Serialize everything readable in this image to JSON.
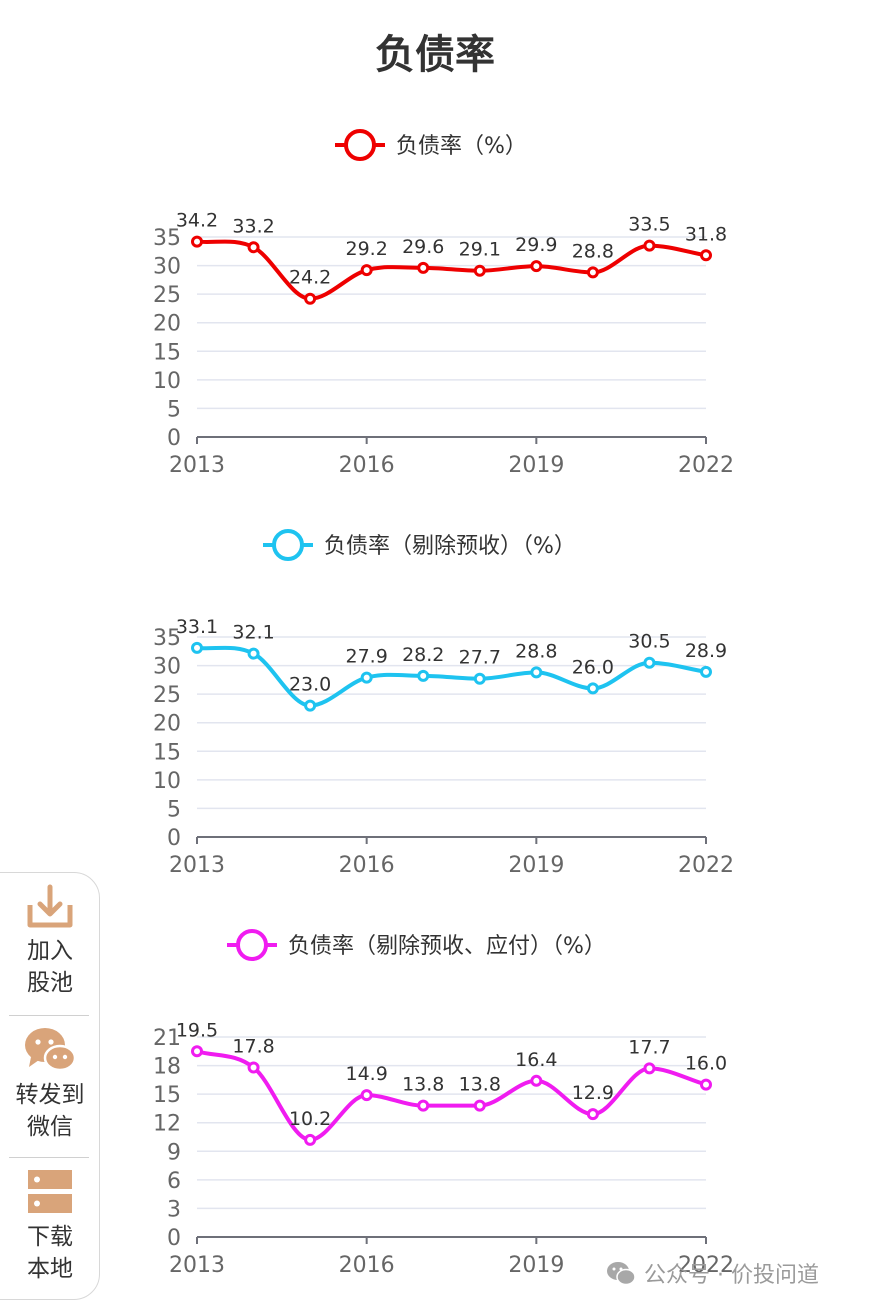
{
  "page": {
    "title": "负债率"
  },
  "chart_data": [
    {
      "type": "line",
      "legend": "负债率（%）",
      "color": "#ee0000",
      "x": [
        2013,
        2014,
        2015,
        2016,
        2017,
        2018,
        2019,
        2020,
        2021,
        2022
      ],
      "x_tick_labels": [
        "2013",
        "2016",
        "2019",
        "2022"
      ],
      "values": [
        34.2,
        33.2,
        24.2,
        29.2,
        29.6,
        29.1,
        29.9,
        28.8,
        33.5,
        31.8
      ],
      "data_labels": [
        "34.2",
        "33.2",
        "24.2",
        "29.2",
        "29.6",
        "29.1",
        "29.9",
        "28.8",
        "33.5",
        "31.8"
      ],
      "ylim": [
        0,
        35
      ],
      "y_ticks": [
        0,
        5,
        10,
        15,
        20,
        25,
        30,
        35
      ],
      "grid": true,
      "legend_position": "top-center"
    },
    {
      "type": "line",
      "legend": "负债率（剔除预收）（%）",
      "color": "#1ec3f0",
      "x": [
        2013,
        2014,
        2015,
        2016,
        2017,
        2018,
        2019,
        2020,
        2021,
        2022
      ],
      "x_tick_labels": [
        "2013",
        "2016",
        "2019",
        "2022"
      ],
      "values": [
        33.1,
        32.1,
        23.0,
        27.9,
        28.2,
        27.7,
        28.8,
        26.0,
        30.5,
        28.9
      ],
      "data_labels": [
        "33.1",
        "32.1",
        "23.0",
        "27.9",
        "28.2",
        "27.7",
        "28.8",
        "26.0",
        "30.5",
        "28.9"
      ],
      "ylim": [
        0,
        35
      ],
      "y_ticks": [
        0,
        5,
        10,
        15,
        20,
        25,
        30,
        35
      ],
      "grid": true,
      "legend_position": "top-center"
    },
    {
      "type": "line",
      "legend": "负债率（剔除预收、应付）（%）",
      "color": "#f01cf0",
      "x": [
        2013,
        2014,
        2015,
        2016,
        2017,
        2018,
        2019,
        2020,
        2021,
        2022
      ],
      "x_tick_labels": [
        "2013",
        "2016",
        "2019",
        "2022"
      ],
      "values": [
        19.5,
        17.8,
        10.2,
        14.9,
        13.8,
        13.8,
        16.4,
        12.9,
        17.7,
        16.0
      ],
      "data_labels": [
        "19.5",
        "17.8",
        "10.2",
        "14.9",
        "13.8",
        "13.8",
        "16.4",
        "12.9",
        "17.7",
        "16.0"
      ],
      "ylim": [
        0,
        21
      ],
      "y_ticks": [
        0,
        3,
        6,
        9,
        12,
        15,
        18,
        21
      ],
      "grid": true,
      "legend_position": "top-center"
    }
  ],
  "side_panel": {
    "add_pool": {
      "line1": "加入",
      "line2": "股池",
      "icon": "download-tray-icon"
    },
    "share_wechat": {
      "line1": "转发到",
      "line2": "微信",
      "icon": "wechat-icon"
    },
    "download_local": {
      "line1": "下载",
      "line2": "本地",
      "icon": "storage-icon"
    },
    "icon_color": "#d9a47a"
  },
  "watermark": {
    "text": "公众号 · 价投问道"
  }
}
